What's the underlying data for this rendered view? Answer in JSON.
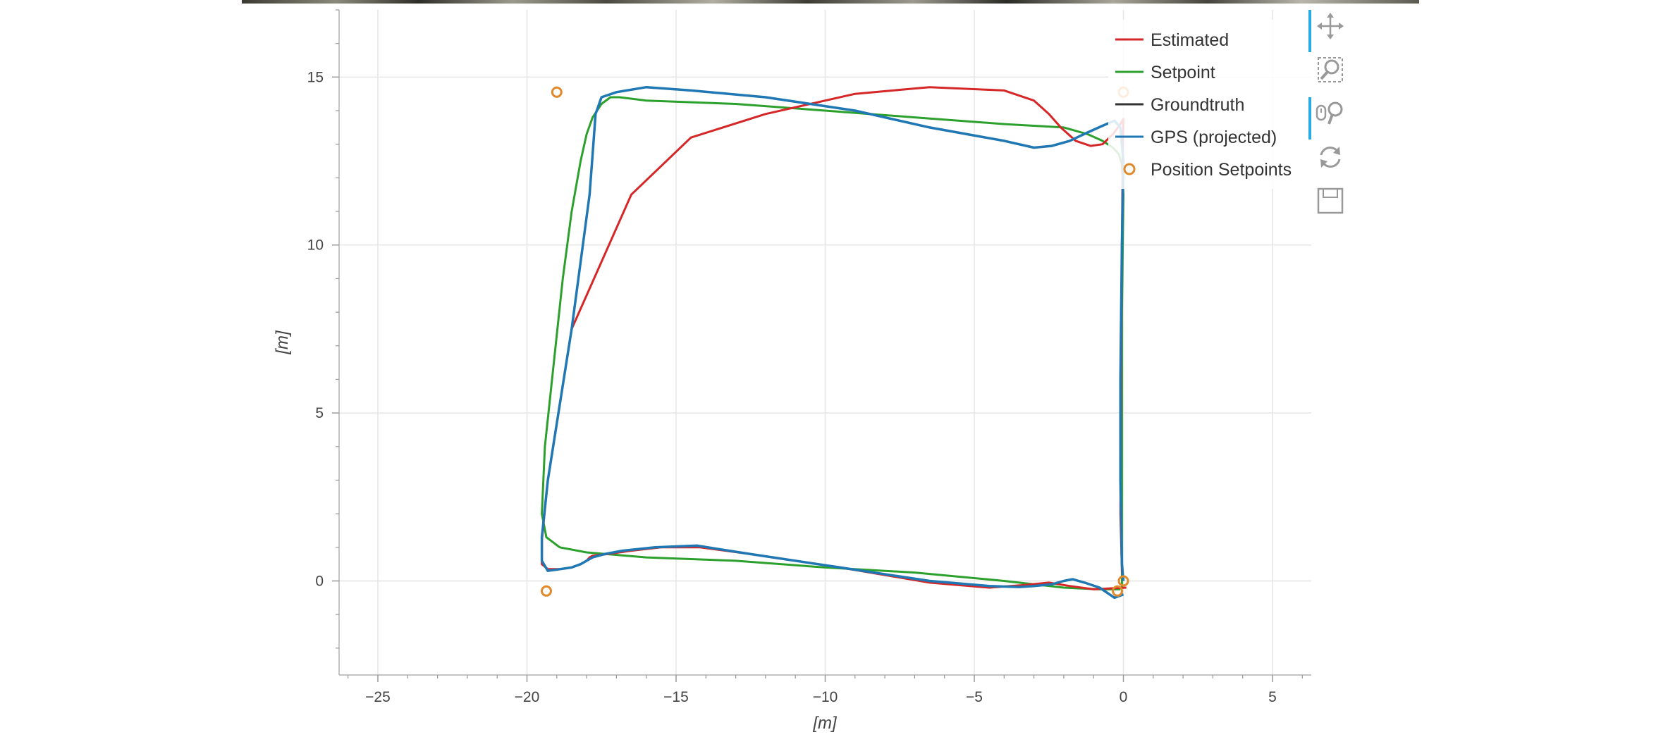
{
  "chart_data": {
    "type": "line",
    "xlabel": "[m]",
    "ylabel": "[m]",
    "xlim": [
      -26.3,
      6.3
    ],
    "ylim": [
      -2.8,
      17.0
    ],
    "xticks": [
      -25,
      -20,
      -15,
      -10,
      -5,
      0,
      5
    ],
    "yticks": [
      0,
      5,
      10,
      15
    ],
    "grid": true,
    "legend_position": "top-right",
    "series": [
      {
        "name": "Estimated",
        "color": "#d62728",
        "x": [
          0.1,
          -0.4,
          -1.0,
          -1.8,
          -2.5,
          -3.3,
          -4.5,
          -6.5,
          -9.5,
          -12.5,
          -14.2,
          -15.5,
          -16.5,
          -17.3,
          -17.8,
          -17.9,
          -18.0,
          -18.2,
          -18.5,
          -18.9,
          -19.3,
          -19.5,
          -19.5,
          -19.3,
          -18.5,
          -16.5,
          -14.5,
          -12.0,
          -9.0,
          -6.5,
          -4.0,
          -3.0,
          -2.5,
          -2.1,
          -1.6,
          -1.1,
          -0.7,
          -0.35,
          -0.1,
          0.0,
          -0.02,
          -0.05,
          -0.08,
          -0.1,
          -0.05,
          0.0
        ],
        "y": [
          -0.2,
          -0.22,
          -0.25,
          -0.15,
          -0.05,
          -0.12,
          -0.2,
          -0.05,
          0.4,
          0.8,
          1.0,
          1.0,
          0.9,
          0.8,
          0.75,
          0.7,
          0.6,
          0.5,
          0.4,
          0.35,
          0.35,
          0.5,
          1.2,
          3.0,
          7.5,
          11.5,
          13.2,
          13.9,
          14.5,
          14.7,
          14.6,
          14.3,
          13.9,
          13.5,
          13.1,
          12.95,
          13.0,
          13.3,
          13.6,
          13.75,
          13.0,
          10.0,
          6.0,
          2.0,
          0.3,
          0.0
        ]
      },
      {
        "name": "Setpoint",
        "color": "#2ca02c",
        "x": [
          -0.1,
          -0.8,
          -2.0,
          -4.0,
          -7.0,
          -10.0,
          -13.0,
          -16.0,
          -18.0,
          -18.9,
          -19.35,
          -19.5,
          -19.4,
          -19.1,
          -18.8,
          -18.5,
          -18.2,
          -18.0,
          -17.8,
          -17.5,
          -17.2,
          -16.9,
          -16.0,
          -13.0,
          -10.0,
          -7.0,
          -4.0,
          -2.0,
          -1.2,
          -0.7,
          -0.35,
          -0.15,
          -0.05,
          0.0,
          -0.05,
          -0.05,
          -0.05,
          -0.05
        ],
        "y": [
          -0.25,
          -0.25,
          -0.2,
          0.0,
          0.25,
          0.4,
          0.6,
          0.7,
          0.85,
          1.0,
          1.3,
          2.0,
          4.0,
          6.5,
          9.0,
          11.0,
          12.5,
          13.3,
          13.8,
          14.2,
          14.4,
          14.4,
          14.3,
          14.2,
          14.0,
          13.8,
          13.6,
          13.5,
          13.3,
          13.1,
          12.9,
          12.7,
          12.4,
          11.5,
          8.0,
          5.0,
          2.0,
          -0.2
        ]
      },
      {
        "name": "Groundtruth",
        "color": "#333333",
        "x": [],
        "y": []
      },
      {
        "name": "GPS (projected)",
        "color": "#1f77b4",
        "x": [
          0.0,
          -0.3,
          -0.8,
          -1.3,
          -1.7,
          -2.0,
          -2.4,
          -3.0,
          -3.5,
          -4.5,
          -6.5,
          -9.5,
          -12.5,
          -14.3,
          -15.7,
          -16.8,
          -17.4,
          -17.8,
          -17.9,
          -18.0,
          -18.2,
          -18.5,
          -18.9,
          -19.3,
          -19.5,
          -19.5,
          -19.3,
          -18.5,
          -17.9,
          -17.8,
          -17.7,
          -17.5,
          -17.0,
          -16.0,
          -14.5,
          -12.0,
          -10.5,
          -9.0,
          -6.5,
          -4.0,
          -3.0,
          -2.4,
          -1.8,
          -1.2,
          -0.7,
          -0.3,
          -0.1,
          0.0,
          -0.05,
          -0.1,
          -0.1,
          -0.05,
          0.0
        ],
        "y": [
          -0.4,
          -0.5,
          -0.2,
          -0.05,
          0.05,
          0.0,
          -0.1,
          -0.15,
          -0.18,
          -0.15,
          0.0,
          0.4,
          0.8,
          1.05,
          1.0,
          0.9,
          0.8,
          0.7,
          0.65,
          0.6,
          0.5,
          0.4,
          0.35,
          0.3,
          0.6,
          1.3,
          3.0,
          7.5,
          11.5,
          12.7,
          13.9,
          14.4,
          14.55,
          14.7,
          14.6,
          14.4,
          14.2,
          14.0,
          13.5,
          13.1,
          12.9,
          12.95,
          13.1,
          13.35,
          13.55,
          13.7,
          13.5,
          12.5,
          10.0,
          6.0,
          3.0,
          0.5,
          0.0
        ]
      }
    ],
    "markers": {
      "name": "Position Setpoints",
      "color": "#e08a2c",
      "points": [
        [
          -19.0,
          14.55
        ],
        [
          0.0,
          14.55
        ],
        [
          -19.35,
          -0.3
        ],
        [
          0.0,
          0.0
        ],
        [
          -0.2,
          -0.3
        ]
      ]
    },
    "legend": [
      "Estimated",
      "Setpoint",
      "Groundtruth",
      "GPS (projected)",
      "Position Setpoints"
    ]
  },
  "toolbar": {
    "tools": [
      {
        "icon": "pan-icon",
        "active": true
      },
      {
        "icon": "box-zoom-icon",
        "active": false
      },
      {
        "icon": "wheel-zoom-icon",
        "active": true
      },
      {
        "icon": "reset-icon",
        "active": false
      },
      {
        "icon": "save-icon",
        "active": false
      }
    ]
  }
}
